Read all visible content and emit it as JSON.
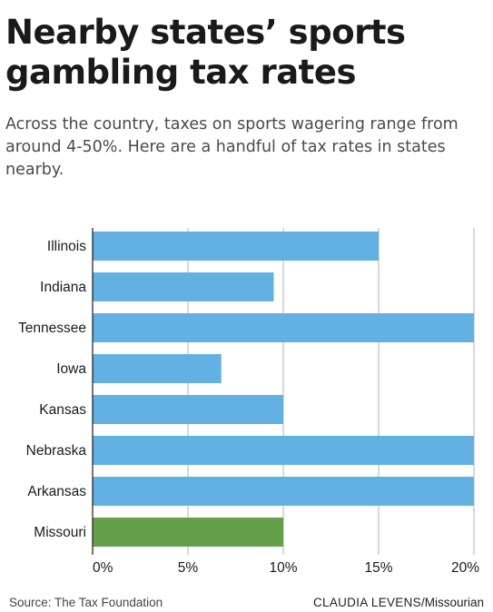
{
  "header": {
    "title": "Nearby states’ sports gambling tax rates",
    "subtitle": "Across the country, taxes on sports wagering range from around 4-50%. Here are a handful of tax rates in states nearby."
  },
  "footer": {
    "source": "Source: The Tax Foundation",
    "credit_name": "CLAUDIA LEVENS",
    "credit_org": "/Missourian"
  },
  "colors": {
    "bar": "#62b1e2",
    "highlight": "#64a04a",
    "grid": "#b0b0b0",
    "text": "#1a1a1a"
  },
  "chart_data": {
    "type": "bar",
    "orientation": "horizontal",
    "categories": [
      "Illinois",
      "Indiana",
      "Tennessee",
      "Iowa",
      "Kansas",
      "Nebraska",
      "Arkansas",
      "Missouri"
    ],
    "values": [
      15,
      9.5,
      20,
      6.75,
      10,
      20,
      20,
      10
    ],
    "highlight": [
      "Missouri"
    ],
    "xlim": [
      0,
      20
    ],
    "xticks": [
      0,
      5,
      10,
      15,
      20
    ],
    "tick_labels": [
      "0%",
      "5%",
      "10%",
      "15%",
      "20%"
    ],
    "grid": true
  }
}
